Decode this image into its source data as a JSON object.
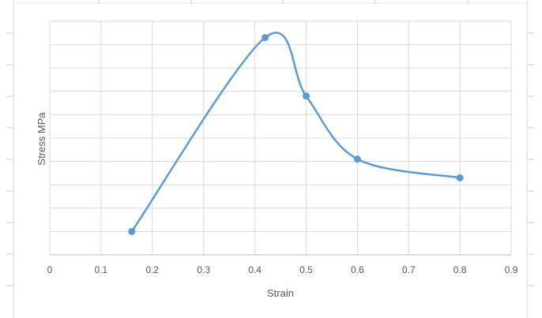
{
  "chart_data": {
    "type": "scatter",
    "title": "",
    "xlabel": "Strain",
    "ylabel": "Stress MPa",
    "xlim": [
      0,
      0.9
    ],
    "x_ticks": [
      "0",
      "0.1",
      "0.2",
      "0.3",
      "0.4",
      "0.5",
      "0.6",
      "0.7",
      "0.8",
      "0.9"
    ],
    "y_gridlines": 10,
    "y_tick_labels_shown": false,
    "grid": true,
    "legend": "none",
    "smoothed_line": true,
    "series": [
      {
        "color": "#5b9bd5",
        "points": [
          {
            "x": 0.16,
            "y": 1.0
          },
          {
            "x": 0.42,
            "y": 9.3
          },
          {
            "x": 0.5,
            "y": 6.8
          },
          {
            "x": 0.6,
            "y": 4.1
          },
          {
            "x": 0.8,
            "y": 3.3
          }
        ]
      }
    ]
  }
}
